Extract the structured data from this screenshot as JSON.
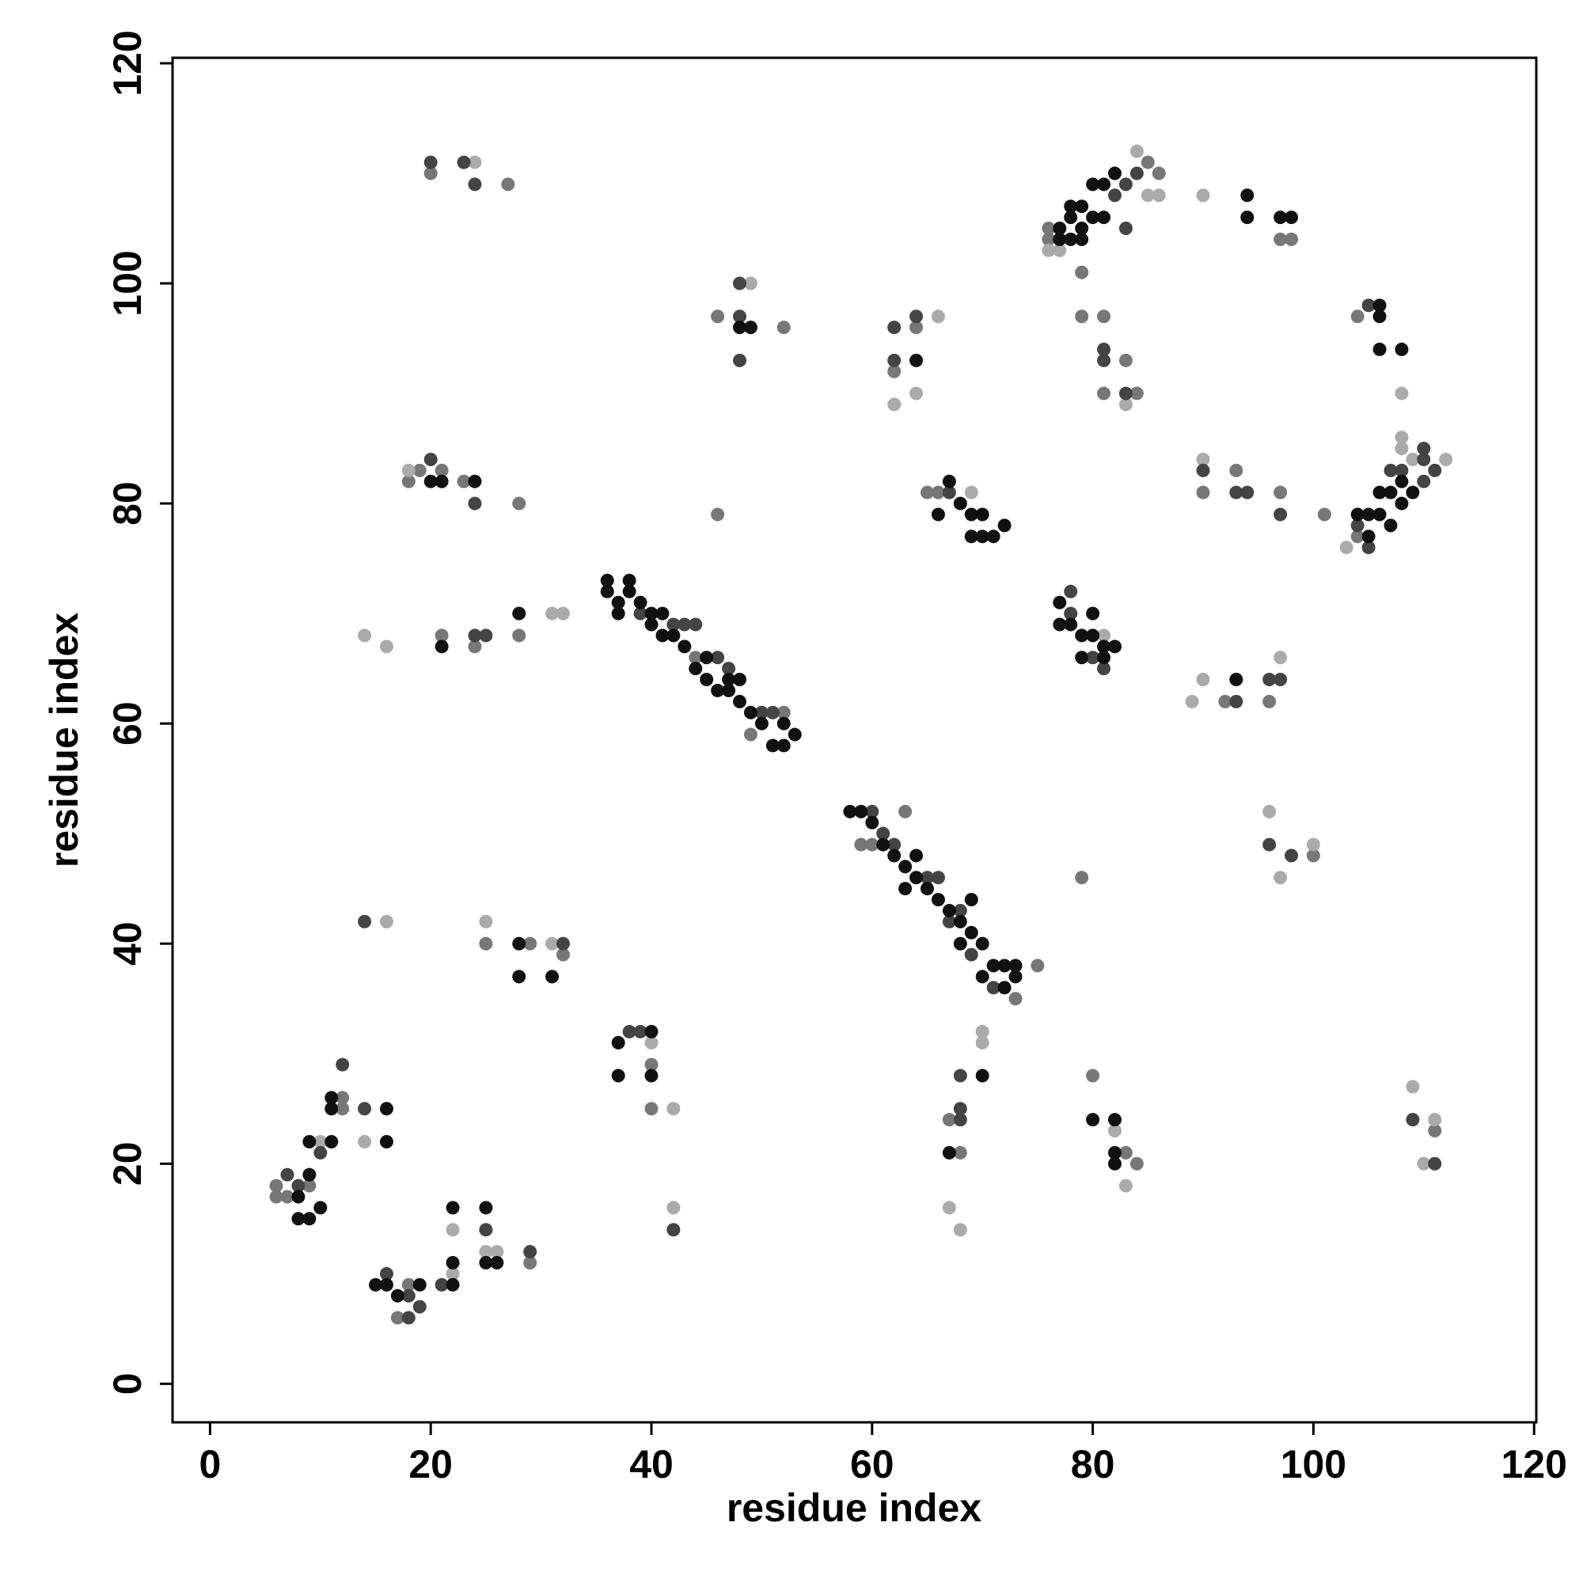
{
  "chart_data": {
    "type": "scatter",
    "x_label": "residue index",
    "y_label": "residue index",
    "xlim": [
      -3.4,
      120.2
    ],
    "ylim": [
      -3.5,
      120.5
    ],
    "xticks": [
      0,
      20,
      40,
      60,
      80,
      100,
      120
    ],
    "yticks": [
      0,
      20,
      40,
      60,
      80,
      100,
      120
    ],
    "series": [
      {
        "color": "#777777",
        "x": [
          6,
          6,
          7,
          9,
          12,
          12,
          17,
          18,
          21,
          24,
          28,
          28,
          18,
          19,
          21,
          23,
          20,
          27,
          25,
          29,
          29,
          32,
          40,
          40,
          46,
          46,
          52,
          62,
          64,
          65,
          66,
          79,
          79,
          81,
          81,
          84,
          83,
          76,
          76,
          85,
          86,
          90,
          93,
          97,
          101,
          96,
          92,
          100,
          104,
          104,
          97,
          98,
          80,
          79,
          83,
          84,
          67,
          68,
          73,
          75,
          59,
          60,
          63,
          111,
          44,
          49,
          52
        ],
        "y": [
          17,
          18,
          17,
          18,
          26,
          25,
          6,
          9,
          68,
          67,
          68,
          80,
          82,
          83,
          83,
          82,
          110,
          109,
          40,
          40,
          11,
          39,
          29,
          25,
          97,
          79,
          96,
          92,
          96,
          81,
          81,
          101,
          97,
          97,
          90,
          90,
          93,
          105,
          104,
          111,
          110,
          81,
          83,
          81,
          79,
          62,
          62,
          48,
          77,
          97,
          104,
          104,
          28,
          46,
          21,
          20,
          24,
          21,
          35,
          38,
          49,
          49,
          52,
          23,
          66,
          59,
          61
        ]
      },
      {
        "color": "#aaaaaa",
        "x": [
          10,
          14,
          14,
          16,
          16,
          18,
          24,
          22,
          22,
          25,
          25,
          26,
          31,
          31,
          32,
          40,
          42,
          42,
          49,
          66,
          62,
          64,
          69,
          67,
          68,
          70,
          70,
          83,
          82,
          83,
          84,
          85,
          86,
          89,
          90,
          90,
          90,
          97,
          96,
          97,
          100,
          103,
          108,
          108,
          108,
          109,
          112,
          110,
          111,
          109,
          76,
          77,
          81
        ],
        "y": [
          22,
          22,
          68,
          67,
          42,
          83,
          111,
          14,
          10,
          42,
          12,
          12,
          40,
          70,
          70,
          31,
          25,
          16,
          100,
          97,
          89,
          90,
          81,
          16,
          14,
          32,
          31,
          89,
          23,
          18,
          112,
          108,
          108,
          62,
          64,
          108,
          84,
          66,
          52,
          46,
          49,
          76,
          90,
          86,
          85,
          84,
          84,
          20,
          24,
          27,
          103,
          103,
          68
        ]
      },
      {
        "color": "#444444",
        "x": [
          7,
          8,
          10,
          12,
          14,
          16,
          18,
          18,
          19,
          21,
          25,
          29,
          20,
          23,
          24,
          20,
          24,
          24,
          25,
          32,
          38,
          39,
          42,
          48,
          48,
          48,
          62,
          64,
          62,
          67,
          68,
          68,
          68,
          81,
          81,
          83,
          96,
          98,
          97,
          96,
          93,
          90,
          93,
          94,
          97,
          105,
          109,
          111,
          14,
          39,
          42,
          43,
          44,
          46,
          47,
          50,
          51,
          60,
          61,
          62,
          65,
          66,
          67,
          68,
          69,
          71,
          78,
          78,
          80,
          81,
          83,
          82,
          83,
          84,
          105,
          104,
          107,
          108,
          110,
          110,
          110,
          111
        ],
        "y": [
          19,
          18,
          21,
          29,
          25,
          10,
          8,
          6,
          7,
          9,
          14,
          12,
          111,
          111,
          109,
          84,
          80,
          68,
          68,
          40,
          32,
          32,
          14,
          97,
          93,
          100,
          96,
          97,
          93,
          81,
          28,
          24,
          25,
          93,
          94,
          90,
          49,
          48,
          64,
          64,
          62,
          83,
          81,
          81,
          79,
          76,
          24,
          20,
          42,
          70,
          69,
          69,
          69,
          66,
          65,
          61,
          61,
          52,
          50,
          49,
          46,
          46,
          42,
          43,
          39,
          36,
          72,
          70,
          66,
          65,
          105,
          108,
          109,
          110,
          98,
          78,
          83,
          83,
          84,
          85,
          82,
          83
        ]
      },
      {
        "color": "#111111",
        "x": [
          8,
          9,
          8,
          9,
          10,
          9,
          11,
          11,
          11,
          16,
          16,
          15,
          16,
          17,
          19,
          22,
          22,
          22,
          25,
          25,
          26,
          28,
          28,
          31,
          28,
          21,
          24,
          20,
          21,
          37,
          37,
          40,
          40,
          36,
          36,
          37,
          37,
          38,
          38,
          39,
          40,
          40,
          41,
          41,
          42,
          43,
          44,
          45,
          45,
          46,
          47,
          47,
          48,
          48,
          49,
          50,
          51,
          52,
          52,
          53,
          48,
          49,
          64,
          67,
          66,
          68,
          69,
          70,
          71,
          70,
          72,
          69,
          58,
          59,
          60,
          61,
          62,
          63,
          63,
          64,
          64,
          65,
          66,
          67,
          68,
          68,
          69,
          69,
          70,
          70,
          71,
          72,
          72,
          73,
          73,
          70,
          67,
          80,
          82,
          82,
          82,
          77,
          77,
          78,
          79,
          79,
          80,
          80,
          81,
          81,
          82,
          93,
          94,
          94,
          97,
          98,
          106,
          106,
          106,
          108,
          77,
          77,
          78,
          78,
          79,
          79,
          80,
          80,
          81,
          81,
          82,
          78,
          79,
          104,
          105,
          105,
          106,
          106,
          107,
          107,
          108,
          108,
          109
        ],
        "y": [
          15,
          15,
          17,
          19,
          16,
          22,
          22,
          25,
          26,
          25,
          22,
          9,
          9,
          8,
          9,
          9,
          11,
          16,
          16,
          11,
          11,
          40,
          37,
          37,
          70,
          67,
          82,
          82,
          82,
          31,
          28,
          28,
          32,
          72,
          73,
          71,
          70,
          72,
          73,
          71,
          70,
          69,
          68,
          70,
          68,
          67,
          65,
          66,
          64,
          63,
          63,
          64,
          64,
          62,
          61,
          60,
          58,
          58,
          60,
          59,
          96,
          96,
          93,
          82,
          79,
          80,
          77,
          77,
          77,
          79,
          78,
          79,
          52,
          52,
          51,
          49,
          48,
          47,
          45,
          48,
          46,
          45,
          44,
          43,
          42,
          40,
          41,
          44,
          40,
          37,
          38,
          38,
          36,
          37,
          38,
          28,
          21,
          24,
          24,
          20,
          21,
          71,
          69,
          69,
          68,
          66,
          70,
          68,
          67,
          66,
          67,
          64,
          108,
          106,
          106,
          106,
          98,
          97,
          94,
          94,
          105,
          104,
          106,
          104,
          107,
          104,
          109,
          106,
          109,
          106,
          110,
          107,
          105,
          79,
          79,
          77,
          81,
          79,
          81,
          78,
          82,
          80,
          81
        ]
      }
    ]
  }
}
